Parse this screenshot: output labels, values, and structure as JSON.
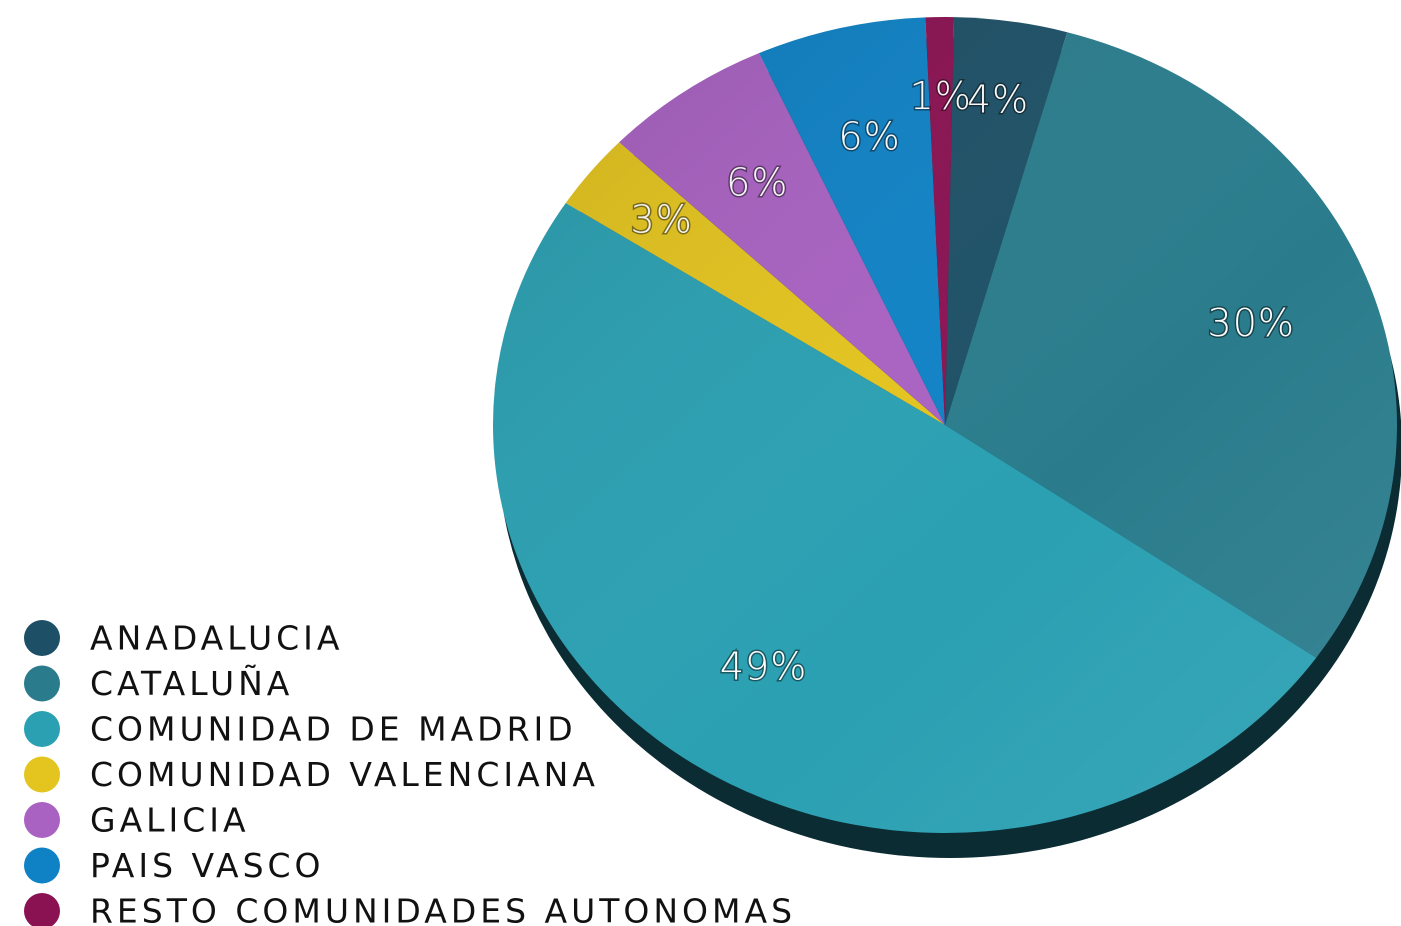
{
  "chart_data": {
    "type": "pie",
    "categories": [
      "ANADALUCIA",
      "CATALUÑA",
      "COMUNIDAD DE MADRID",
      "COMUNIDAD VALENCIANA",
      "GALICIA",
      "PAIS VASCO",
      "RESTO COMUNIDADES AUTONOMAS"
    ],
    "values": [
      4,
      30,
      49,
      3,
      6,
      6,
      1
    ],
    "value_labels": [
      "4%",
      "30%",
      "49%",
      "3%",
      "6%",
      "6%",
      "1%"
    ],
    "colors": [
      "#1d5066",
      "#2a7c8c",
      "#2aa0b2",
      "#e4c41e",
      "#a962c2",
      "#0f82c6",
      "#8a1252"
    ],
    "legend": "bottom-left"
  }
}
